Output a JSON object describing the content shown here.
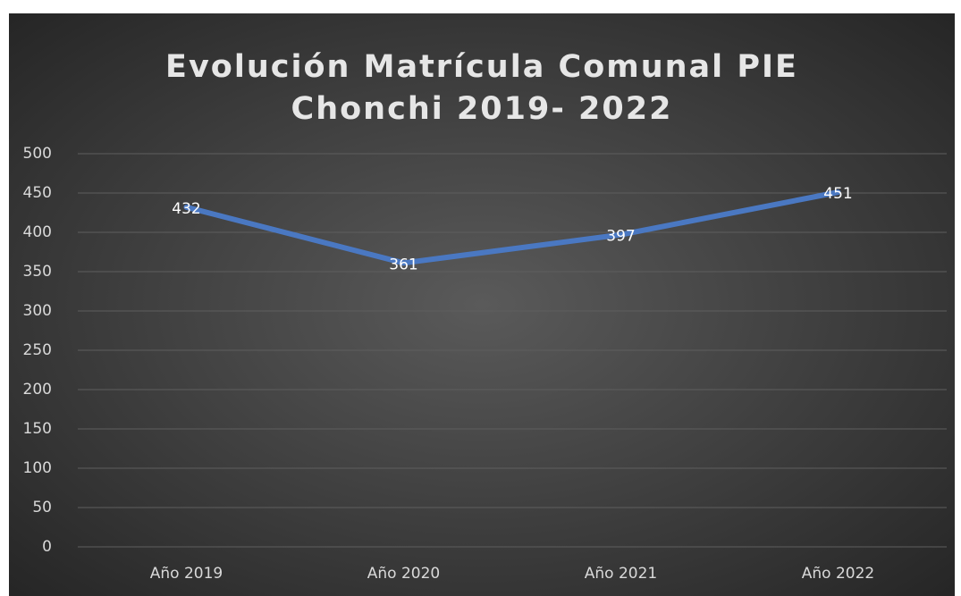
{
  "chart_data": {
    "type": "line",
    "title": [
      "Evolución Matrícula Comunal  PIE",
      "Chonchi 2019- 2022"
    ],
    "categories": [
      "Año 2019",
      "Año 2020",
      "Año 2021",
      "Año 2022"
    ],
    "series": [
      {
        "color": "#4a78c2",
        "values": [
          432,
          361,
          397,
          451
        ]
      }
    ],
    "ylim": [
      0,
      500
    ],
    "yticks": [
      0,
      50,
      100,
      150,
      200,
      250,
      300,
      350,
      400,
      450,
      500
    ],
    "grid": true
  }
}
